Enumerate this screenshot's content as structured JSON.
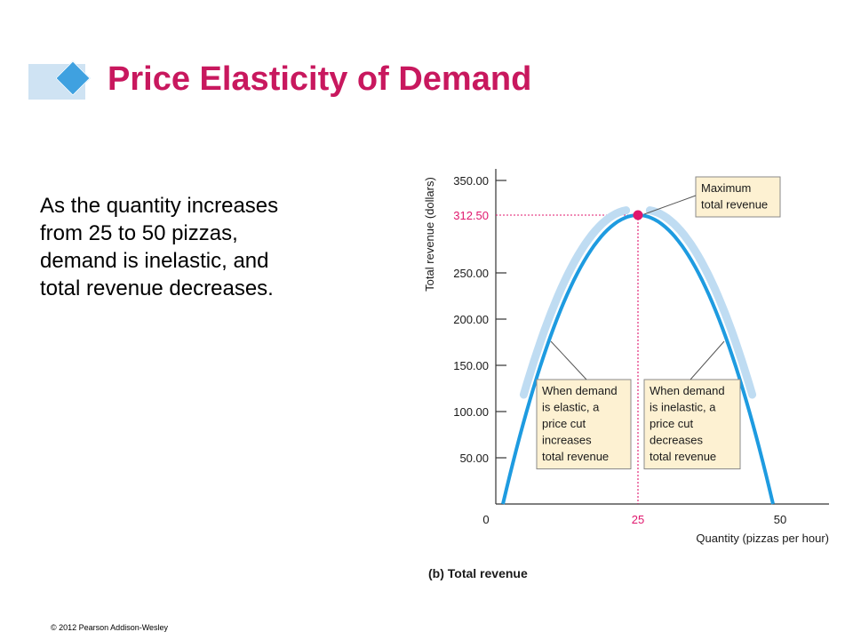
{
  "slide": {
    "title": "Price Elasticity of Demand",
    "body_lines": [
      "As the quantity increases",
      "from 25 to 50 pizzas,",
      "demand is inelastic, and",
      "total revenue decreases."
    ],
    "copyright": "© 2012 Pearson Addison-Wesley"
  },
  "colors": {
    "title": "#c8185e",
    "curve": "#1e9be0",
    "curve_halo": "#bfdcf2",
    "highlight": "#e0186e",
    "callout_fill": "#fdf1d2",
    "title_bar": "#cfe3f3",
    "title_diamond": "#3fa1e0"
  },
  "chart_data": {
    "type": "line",
    "caption": "(b) Total revenue",
    "xlabel": "Quantity (pizzas per hour)",
    "ylabel": "Total revenue (dollars)",
    "xlim": [
      0,
      55
    ],
    "ylim": [
      0,
      365
    ],
    "x_ticks": [
      "0",
      "25",
      "50"
    ],
    "y_ticks": [
      "50.00",
      "100.00",
      "150.00",
      "200.00",
      "250.00",
      "350.00"
    ],
    "highlight_tick": "312.50",
    "series": [
      {
        "x": [
          1.25,
          5,
          10,
          15,
          20,
          25,
          30,
          35,
          40,
          45,
          48.75
        ],
        "y": [
          0,
          100,
          200,
          262.5,
          300,
          312.5,
          300,
          262.5,
          200,
          100,
          0
        ]
      }
    ],
    "max_point": {
      "x": 25,
      "y": 312.5
    },
    "annotations": {
      "max": [
        "Maximum",
        "total revenue"
      ],
      "elastic": [
        "When demand",
        "is elastic, a",
        "price cut",
        "increases",
        "total revenue"
      ],
      "inelastic": [
        "When demand",
        "is inelastic, a",
        "price cut",
        "decreases",
        "total revenue"
      ]
    }
  }
}
